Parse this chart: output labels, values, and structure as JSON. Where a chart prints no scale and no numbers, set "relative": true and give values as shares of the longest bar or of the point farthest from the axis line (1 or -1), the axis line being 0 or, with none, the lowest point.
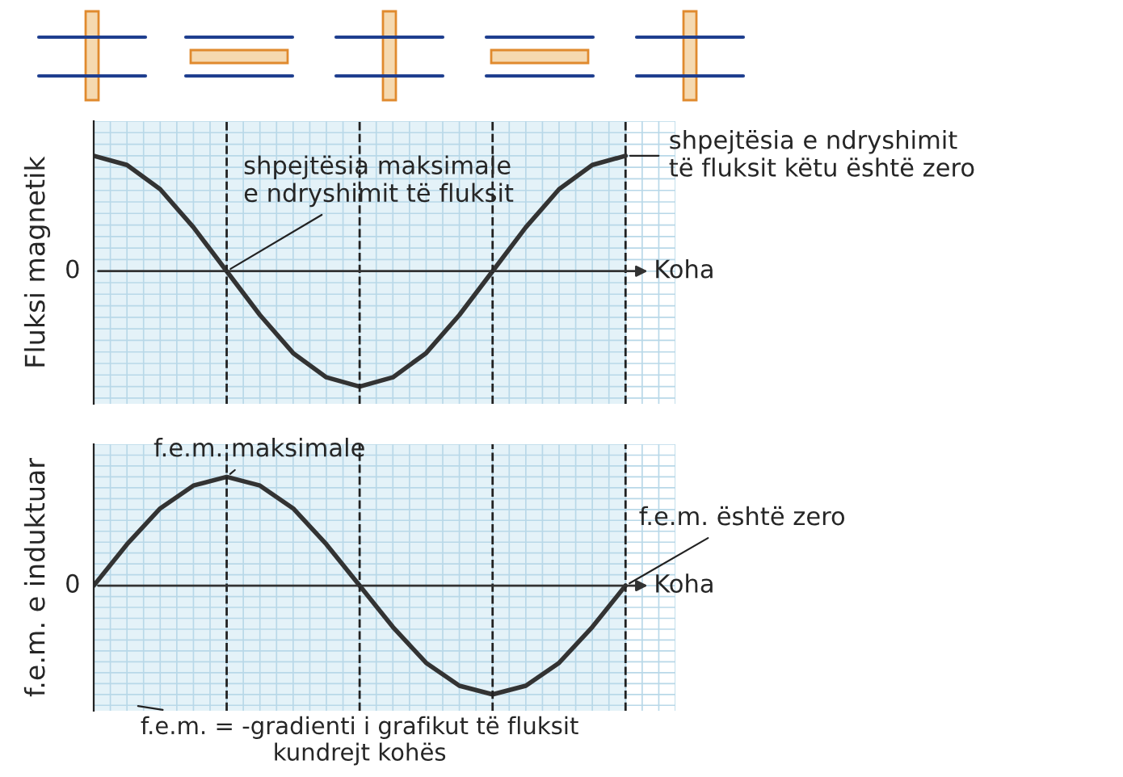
{
  "chart_data": [
    {
      "type": "line",
      "relative": true,
      "ylabel": "Fluksi magnetik",
      "xlabel": "Koha",
      "grid": true,
      "marker": "none",
      "line_style": "solid",
      "categories": [
        null,
        null,
        null,
        null,
        null,
        null,
        null,
        null,
        null,
        null,
        null,
        null,
        null,
        null,
        null,
        null,
        null
      ],
      "series": [
        {
          "color": "#333333",
          "values": [
            1,
            0.92,
            0.71,
            0.38,
            0,
            -0.38,
            -0.71,
            -0.92,
            -1,
            -0.92,
            -0.71,
            -0.38,
            0,
            0.38,
            0.71,
            0.92,
            1
          ]
        }
      ],
      "annotations": [
        "0",
        "shpejtësia maksimale\ne ndryshimit të fluksit",
        "shpejtësia e ndryshimit\ntë fluksit këtu është zero"
      ]
    },
    {
      "type": "line",
      "relative": true,
      "ylabel": "f.e.m. e induktuar",
      "xlabel": "Koha",
      "grid": true,
      "marker": "none",
      "line_style": "solid",
      "categories": [
        null,
        null,
        null,
        null,
        null,
        null,
        null,
        null,
        null,
        null,
        null,
        null,
        null,
        null,
        null,
        null,
        null
      ],
      "series": [
        {
          "color": "#333333",
          "values": [
            0,
            0.38,
            0.71,
            0.92,
            1,
            0.92,
            0.71,
            0.38,
            0,
            -0.38,
            -0.71,
            -0.92,
            -1,
            -0.92,
            -0.71,
            -0.38,
            0
          ]
        }
      ],
      "annotations": [
        "0",
        "f.e.m. maksimale",
        "f.e.m. është zero",
        "f.e.m. = -gradienti i grafikut të fluksit\nkundrejt kohës"
      ]
    }
  ]
}
